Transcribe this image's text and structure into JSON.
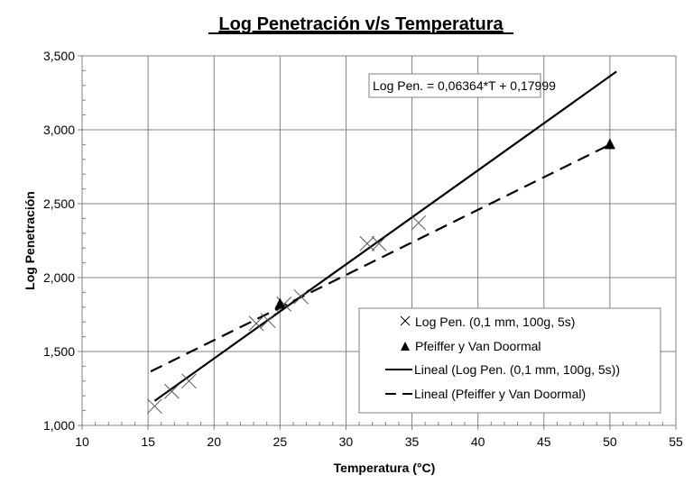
{
  "chart_data": {
    "type": "scatter",
    "title": "Log Penetración v/s Temperatura",
    "xlabel": "Temperatura (°C)",
    "ylabel": "Log Penetración",
    "xlim": [
      10,
      55
    ],
    "ylim": [
      1.0,
      3.5
    ],
    "x_ticks": [
      "10",
      "15",
      "20",
      "25",
      "30",
      "35",
      "40",
      "45",
      "50",
      "55"
    ],
    "x_tick_values": [
      10,
      15,
      20,
      25,
      30,
      35,
      40,
      45,
      50,
      55
    ],
    "y_ticks": [
      "1,000",
      "1,500",
      "2,000",
      "2,500",
      "3,000",
      "3,500"
    ],
    "y_tick_values": [
      1.0,
      1.5,
      2.0,
      2.5,
      3.0,
      3.5
    ],
    "grid": true,
    "legend_position": "bottom-right",
    "annotation": "Log Pen. = 0,06364*T + 0,17999",
    "series": [
      {
        "name": "Log Pen. (0,1 mm, 100g, 5s)",
        "marker": "x",
        "x": [
          15.5,
          16.8,
          18.1,
          23.2,
          24.1,
          25.3,
          26.6,
          31.6,
          32.5,
          35.5
        ],
        "y": [
          1.13,
          1.23,
          1.3,
          1.69,
          1.71,
          1.82,
          1.87,
          2.23,
          2.23,
          2.37
        ]
      },
      {
        "name": "Pfeiffer y Van Doormal",
        "marker": "triangle",
        "x": [
          25,
          50
        ],
        "y": [
          1.82,
          2.9
        ]
      },
      {
        "name": "Lineal (Log Pen. (0,1 mm, 100g, 5s))",
        "style": "solid",
        "slope": 0.06364,
        "intercept": 0.17999,
        "x_range": [
          15.5,
          50.5
        ]
      },
      {
        "name": "Lineal (Pfeiffer y Van Doormal)",
        "style": "dashed",
        "slope": 0.0441,
        "intercept": 0.6946,
        "x_range": [
          15.2,
          50
        ]
      }
    ]
  },
  "colors": {
    "line": "#000000",
    "grid": "#808080",
    "background": "#ffffff"
  }
}
